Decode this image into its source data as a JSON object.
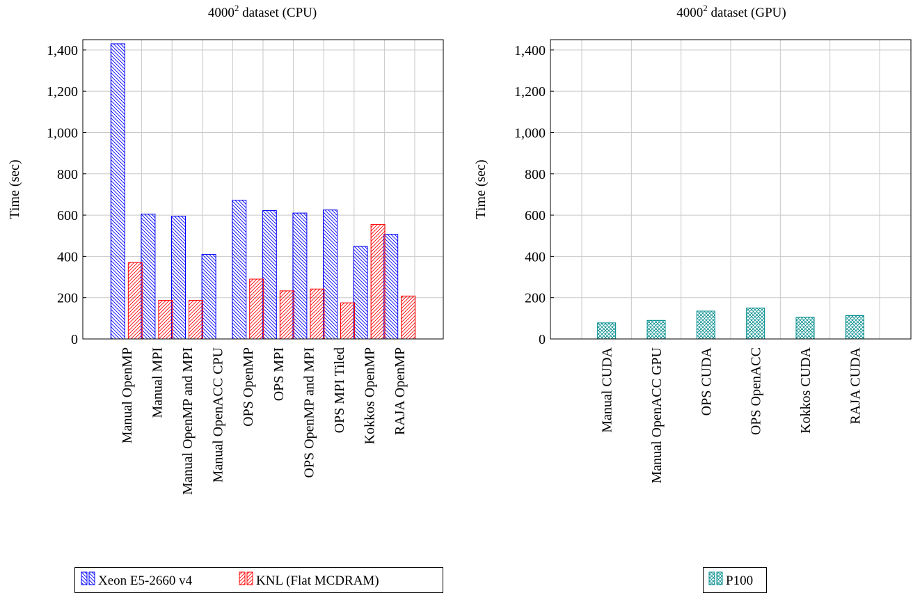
{
  "chart_data": [
    {
      "type": "bar",
      "title": "4000² dataset (CPU)",
      "title_base": "4000",
      "title_sup": "2",
      "title_rest": " dataset (CPU)",
      "xlabel": "",
      "ylabel": "Time (sec)",
      "ylim": [
        0,
        1450
      ],
      "yticks": [
        0,
        200,
        400,
        600,
        800,
        1000,
        1200,
        1400
      ],
      "ytick_labels": [
        "0",
        "200",
        "400",
        "600",
        "800",
        "1,000",
        "1,200",
        "1,400"
      ],
      "grid": true,
      "legend_position": "bottom",
      "categories": [
        "Manual OpenMP",
        "Manual MPI",
        "Manual OpenMP and MPI",
        "Manual OpenACC CPU",
        "OPS OpenMP",
        "OPS MPI",
        "OPS OpenMP and MPI",
        "OPS MPI Tiled",
        "Kokkos OpenMP",
        "RAJA OpenMP"
      ],
      "series": [
        {
          "name": "Xeon E5-2660 v4",
          "color": "#0000ff",
          "pattern": "north-west-lines",
          "values": [
            1430,
            605,
            595,
            410,
            672,
            622,
            610,
            625,
            448,
            507
          ]
        },
        {
          "name": "KNL (Flat MCDRAM)",
          "color": "#ff0000",
          "pattern": "north-east-lines",
          "values": [
            370,
            187,
            187,
            0,
            290,
            233,
            242,
            175,
            555,
            208
          ]
        }
      ]
    },
    {
      "type": "bar",
      "title": "4000² dataset (GPU)",
      "title_base": "4000",
      "title_sup": "2",
      "title_rest": " dataset (GPU)",
      "xlabel": "",
      "ylabel": "Time (sec)",
      "ylim": [
        0,
        1450
      ],
      "yticks": [
        0,
        200,
        400,
        600,
        800,
        1000,
        1200,
        1400
      ],
      "ytick_labels": [
        "0",
        "200",
        "400",
        "600",
        "800",
        "1,000",
        "1,200",
        "1,400"
      ],
      "grid": true,
      "legend_position": "bottom",
      "categories": [
        "Manual CUDA",
        "Manual OpenACC GPU",
        "OPS CUDA",
        "OPS OpenACC",
        "Kokkos CUDA",
        "RAJA CUDA"
      ],
      "series": [
        {
          "name": "P100",
          "color": "#008b8b",
          "pattern": "crosshatch",
          "values": [
            78,
            90,
            135,
            150,
            105,
            113
          ]
        }
      ]
    }
  ]
}
